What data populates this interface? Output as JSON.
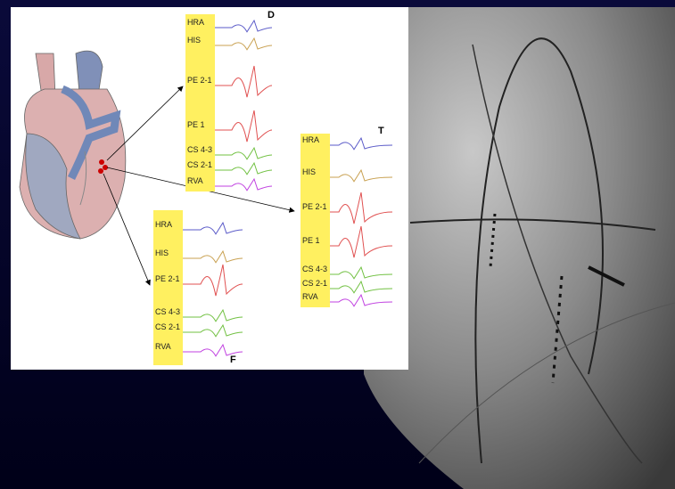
{
  "panels": [
    {
      "label": "D",
      "channels": [
        "HRA",
        "HIS",
        "PE 2-1",
        "PE 1",
        "CS 4-3",
        "CS 2-1",
        "RVA"
      ]
    },
    {
      "label": "T",
      "channels": [
        "HRA",
        "HIS",
        "PE 2-1",
        "PE 1",
        "CS 4-3",
        "CS 2-1",
        "RVA"
      ]
    },
    {
      "label": "F",
      "channels": [
        "HRA",
        "HIS",
        "PE 2-1",
        "CS 4-3",
        "CS 2-1",
        "RVA"
      ]
    }
  ]
}
